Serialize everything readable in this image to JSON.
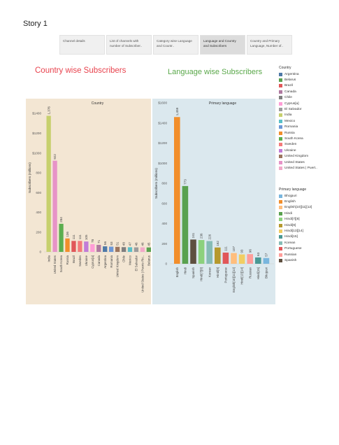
{
  "story": {
    "title": "Story 1"
  },
  "nav_tabs": [
    {
      "label": "Channel details"
    },
    {
      "label": "List of channels with number of Subscriber.."
    },
    {
      "label": "Category wise Language and Countr.."
    },
    {
      "label": "Language and Country and Subscribers"
    },
    {
      "label": "Country and Primary Language, Number of.."
    }
  ],
  "colors": {
    "left_panel_bg": "#f3e6d3",
    "right_panel_bg": "#dbe8ee",
    "left_title": "#e8424d",
    "right_title": "#5aa84a"
  },
  "chart_data": [
    {
      "type": "bar",
      "title": "Country wise Subscribers",
      "subtitle": "Country",
      "ylabel": "Subscribers (millions)",
      "xlabel": "",
      "ylim": [
        0,
        1500
      ],
      "yticks": [
        0,
        200,
        400,
        600,
        800,
        1000,
        1200,
        1400
      ],
      "ytick_labels": [
        "0",
        "200",
        "400",
        "600",
        "800",
        "$1000",
        "$1200",
        "$1400"
      ],
      "grid": false,
      "categories": [
        "India",
        "United States",
        "South Korea",
        "Russia",
        "Brazil",
        "Sweden",
        "Ukraine",
        "Cyprus[a]",
        "Canada",
        "Argentina",
        "Romania",
        "United Kingdom",
        "Chile",
        "Mexico",
        "El Salvador",
        "United States | Puerto Ric..",
        "Belarus"
      ],
      "category_labels": [
        "India",
        "United States",
        "South Korea",
        "Russia",
        "Brazil",
        "Sweden",
        "Ukraine",
        "Cyprus[a]",
        "Canada",
        "Argentina",
        "Romania",
        "United Kingdom",
        "Chile",
        "Mexico",
        "El Salvador",
        "United States | Puerto Ric..",
        "Belarus"
      ],
      "values": [
        1376,
        922,
        284,
        136,
        111,
        111,
        105,
        78,
        71,
        56,
        53,
        51,
        48,
        47,
        46,
        46,
        45
      ],
      "value_labels": [
        "1,376",
        "922",
        "284",
        "136",
        "111",
        "111",
        "105",
        "78",
        "71",
        "56",
        "53",
        "51",
        "48",
        "47",
        "46",
        "46",
        "45"
      ],
      "colors": [
        "#c7d06d",
        "#e793c8",
        "#5cae4f",
        "#f28e2b",
        "#e15759",
        "#f47a7a",
        "#c17bd8",
        "#ff9dd7",
        "#b07aa1",
        "#4e79a7",
        "#6c97d6",
        "#9c755f",
        "#7f7f7f",
        "#59c0c9",
        "#9c9c9c",
        "#f2a9c9",
        "#59a14f"
      ],
      "legend": {
        "title": "Country",
        "position": "right",
        "items": [
          {
            "label": "Argentina",
            "color": "#4e79a7"
          },
          {
            "label": "Belarus",
            "color": "#59a14f"
          },
          {
            "label": "Brazil",
            "color": "#e15759"
          },
          {
            "label": "Canada",
            "color": "#b07aa1"
          },
          {
            "label": "Chile",
            "color": "#7f7f7f"
          },
          {
            "label": "Cyprus[a]",
            "color": "#ff9dd7"
          },
          {
            "label": "El Salvador",
            "color": "#9c9c9c"
          },
          {
            "label": "India",
            "color": "#c7d06d"
          },
          {
            "label": "Mexico",
            "color": "#59c0c9"
          },
          {
            "label": "Romania",
            "color": "#6c97d6"
          },
          {
            "label": "Russia",
            "color": "#f28e2b"
          },
          {
            "label": "South Korea",
            "color": "#5cae4f"
          },
          {
            "label": "Sweden",
            "color": "#f47a7a"
          },
          {
            "label": "Ukraine",
            "color": "#c17bd8"
          },
          {
            "label": "United Kingdom",
            "color": "#9c755f"
          },
          {
            "label": "United States",
            "color": "#e793c8"
          },
          {
            "label": "United States | Puert..",
            "color": "#f2a9c9"
          }
        ]
      }
    },
    {
      "type": "bar",
      "title": "Language wise Subscribers",
      "subtitle": "Primary language",
      "ylabel": "Subscribers (millions)",
      "xlabel": "",
      "ylim": [
        0,
        1600
      ],
      "yticks": [
        0,
        200,
        400,
        600,
        800,
        1000,
        1200,
        1400,
        1600
      ],
      "ytick_labels": [
        "0",
        "200",
        "400",
        "600",
        "800",
        "$1000",
        "$1200",
        "$1400",
        "$1600"
      ],
      "grid": false,
      "categories": [
        "English",
        "Hindi",
        "Spanish",
        "Hindi[7][8]",
        "Korean",
        "Hindi[9]",
        "Portuguese",
        "English[10][11][12]",
        "Hindi[13][14]",
        "Russian",
        "Hindi[15]",
        "Bhojpuri"
      ],
      "category_labels": [
        "English",
        "Hindi",
        "Spanish",
        "Hindi[7][8]",
        "Korean",
        "Hindi[9]",
        "Portuguese",
        "English[10][11][12]",
        "Hindi[13][14]",
        "Russian",
        "Hindi[15]",
        "Bhojpuri"
      ],
      "values": [
        1459,
        773,
        241,
        236,
        226,
        162,
        111,
        107,
        93,
        96,
        63,
        57
      ],
      "value_labels": [
        "1,459",
        "773",
        "241",
        "236",
        "226",
        "162",
        "111",
        "107",
        "93",
        "96",
        "63",
        "57"
      ],
      "colors": [
        "#f28e2b",
        "#59a14f",
        "#5e4f3f",
        "#8cd17d",
        "#86bcb6",
        "#b6992d",
        "#e15759",
        "#ffbe7d",
        "#f1ce63",
        "#ff9d9a",
        "#499894",
        "#79b6de"
      ],
      "legend": {
        "title": "Primary language",
        "position": "right",
        "items": [
          {
            "label": "Bhojpuri",
            "color": "#79b6de"
          },
          {
            "label": "English",
            "color": "#f28e2b"
          },
          {
            "label": "English[10][11][12]",
            "color": "#ffbe7d"
          },
          {
            "label": "Hindi",
            "color": "#59a14f"
          },
          {
            "label": "Hindi[7][8]",
            "color": "#8cd17d"
          },
          {
            "label": "Hindi[9]",
            "color": "#b6992d"
          },
          {
            "label": "Hindi[13][14]",
            "color": "#f1ce63"
          },
          {
            "label": "Hindi[15]",
            "color": "#499894"
          },
          {
            "label": "Korean",
            "color": "#86bcb6"
          },
          {
            "label": "Portuguese",
            "color": "#e15759"
          },
          {
            "label": "Russian",
            "color": "#ff9d9a"
          },
          {
            "label": "Spanish",
            "color": "#5e4f3f"
          }
        ]
      }
    }
  ]
}
